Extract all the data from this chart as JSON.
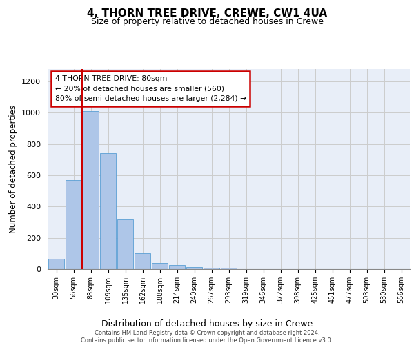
{
  "title": "4, THORN TREE DRIVE, CREWE, CW1 4UA",
  "subtitle": "Size of property relative to detached houses in Crewe",
  "xlabel": "Distribution of detached houses by size in Crewe",
  "ylabel": "Number of detached properties",
  "categories": [
    "30sqm",
    "56sqm",
    "83sqm",
    "109sqm",
    "135sqm",
    "162sqm",
    "188sqm",
    "214sqm",
    "240sqm",
    "267sqm",
    "293sqm",
    "319sqm",
    "346sqm",
    "372sqm",
    "398sqm",
    "425sqm",
    "451sqm",
    "477sqm",
    "503sqm",
    "530sqm",
    "556sqm"
  ],
  "values": [
    65,
    570,
    1010,
    740,
    320,
    100,
    40,
    25,
    15,
    10,
    10,
    0,
    0,
    0,
    0,
    0,
    0,
    0,
    0,
    0,
    0
  ],
  "bar_color": "#aec6e8",
  "bar_edge_color": "#5a9fd4",
  "ylim": [
    0,
    1280
  ],
  "yticks": [
    0,
    200,
    400,
    600,
    800,
    1000,
    1200
  ],
  "annotation_text": "4 THORN TREE DRIVE: 80sqm\n← 20% of detached houses are smaller (560)\n80% of semi-detached houses are larger (2,284) →",
  "red_line_x": 1.5,
  "annotation_box_color": "#ffffff",
  "annotation_box_edge": "#cc0000",
  "red_line_color": "#cc0000",
  "background_color": "#e8eef8",
  "footer_text": "Contains HM Land Registry data © Crown copyright and database right 2024.\nContains public sector information licensed under the Open Government Licence v3.0.",
  "title_fontsize": 11,
  "subtitle_fontsize": 9,
  "ylabel_fontsize": 8.5,
  "xlabel_fontsize": 9
}
